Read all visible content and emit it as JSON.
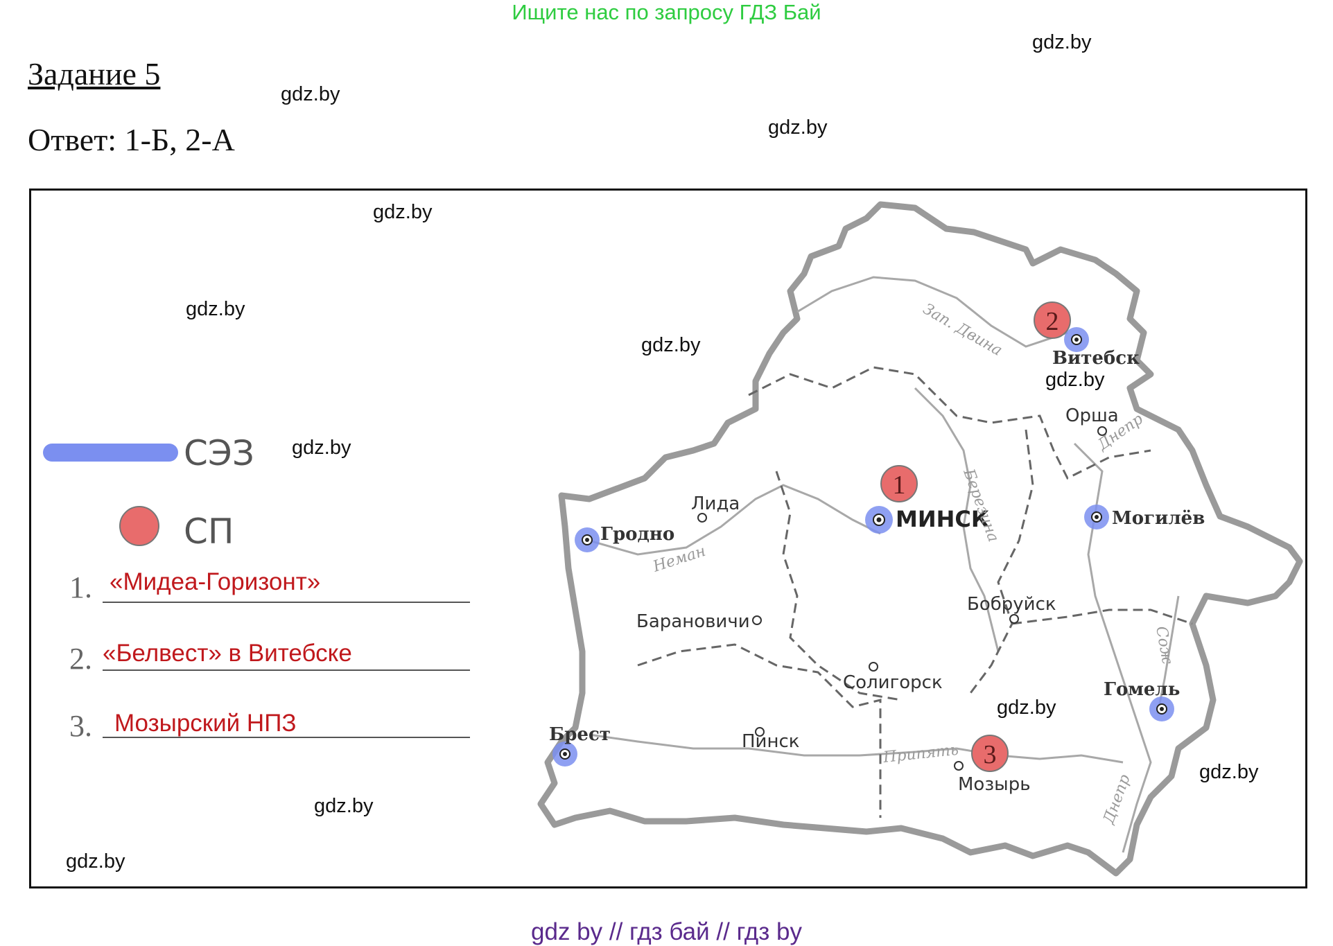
{
  "banner": "Ищите нас по запросу ГДЗ Бай",
  "watermark": "gdz.by",
  "title": "Задание 5",
  "answer": "Ответ: 1-Б, 2-А",
  "legend": {
    "sez_label": "СЭЗ",
    "sp_label": "СП",
    "sez_color": "#7b8ff0",
    "sp_color": "#e86c6c"
  },
  "items": [
    {
      "num": "1.",
      "text": "«Мидеа-Горизонт»"
    },
    {
      "num": "2.",
      "text": "«Белвест» в Витебске"
    },
    {
      "num": "3.",
      "text": "Мозырский НПЗ"
    }
  ],
  "map": {
    "cities": {
      "minsk": "МИНСК",
      "vitebsk": "Витебск",
      "mogilev": "Могилёв",
      "gomel": "Гомель",
      "grodno": "Гродно",
      "brest": "Брест",
      "lida": "Лида",
      "baranovichi": "Барановичи",
      "orsha": "Орша",
      "bobruisk": "Бобруйск",
      "soligorsk": "Солигорск",
      "pinsk": "Пинск",
      "mozyr": "Мозырь"
    },
    "rivers": {
      "zap_dvina": "Зап. Двина",
      "dnepr_north": "Днепр",
      "berezina": "Березина",
      "neman": "Неман",
      "sozh": "Сож",
      "pripyat": "Припять",
      "dnepr_south": "Днепр"
    },
    "markers": [
      "1",
      "2",
      "3"
    ]
  },
  "footer": "gdz by  //  гдз бай  //  гдз by"
}
